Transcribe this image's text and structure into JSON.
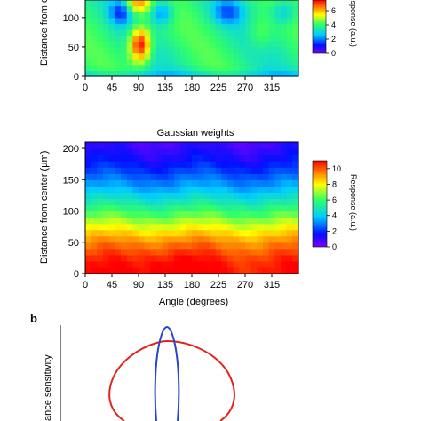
{
  "colors": {
    "sensitivity_red": "#e3231e",
    "sensitivity_blue": "#2846c8"
  },
  "chart_data": [
    {
      "type": "heatmap",
      "title": "",
      "xlabel": "",
      "ylabel": "Distance from ce",
      "x_ticks": [
        "0",
        "45",
        "90",
        "135",
        "180",
        "225",
        "270",
        "315"
      ],
      "y_ticks": [
        "0",
        "50",
        "100"
      ],
      "xlim": [
        0,
        360
      ],
      "ylim": [
        0,
        130
      ],
      "colorbar": {
        "label": "Response (a.u.)",
        "ticks": [
          "0",
          "2",
          "4",
          "6"
        ],
        "range": [
          0,
          7.5
        ]
      },
      "grid": false
    },
    {
      "type": "heatmap",
      "title": "Gaussian weights",
      "xlabel": "Angle (degrees)",
      "ylabel": "Distance from center (µm)",
      "x_ticks": [
        "0",
        "45",
        "90",
        "135",
        "180",
        "225",
        "270",
        "315"
      ],
      "y_ticks": [
        "0",
        "50",
        "100",
        "150",
        "200"
      ],
      "xlim": [
        0,
        360
      ],
      "ylim": [
        0,
        210
      ],
      "colorbar": {
        "label": "Response (a.u.)",
        "ticks": [
          "0",
          "2",
          "4",
          "6",
          "8",
          "10"
        ],
        "range": [
          0,
          11
        ]
      },
      "grid": false
    },
    {
      "type": "line",
      "panel_label": "b",
      "ylabel": "ance sensitivity",
      "series": [
        {
          "color": "red"
        },
        {
          "color": "blue"
        }
      ]
    }
  ]
}
